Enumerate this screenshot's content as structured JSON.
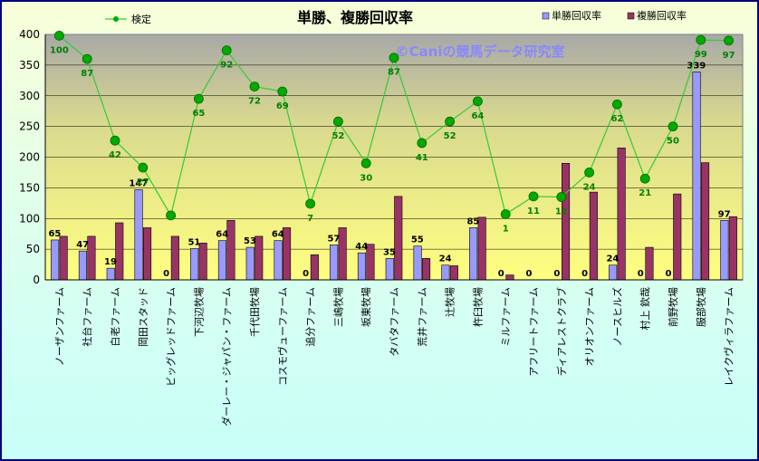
{
  "chart_data": {
    "type": "bar",
    "title": "単勝、複勝回収率",
    "watermark": "©Caniの競馬データ研究室",
    "ylim": [
      0,
      400
    ],
    "yticks": [
      0,
      50,
      100,
      150,
      200,
      250,
      300,
      350,
      400
    ],
    "grid": true,
    "legend_placement": "top",
    "categories": [
      "ノーザンファーム",
      "社台ファーム",
      "白老ファーム",
      "岡田スタッド",
      "ビッグレッドファーム",
      "下河辺牧場",
      "ダーレー・ジャパン・ファーム",
      "千代田牧場",
      "コスモヴューファーム",
      "追分ファーム",
      "三嶋牧場",
      "坂東牧場",
      "タバタファーム",
      "荒井ファーム",
      "辻牧場",
      "杵臼牧場",
      "ミルファーム",
      "アフリートファーム",
      "ディアレストクラブ",
      "オリオンファーム",
      "ノースヒルズ",
      "村上 欽哉",
      "前野牧場",
      "服部牧場",
      "レイクヴィラファーム"
    ],
    "series": [
      {
        "name": "単勝回収率",
        "color": "#9999ff",
        "values": [
          65,
          47,
          19,
          147,
          0,
          51,
          64,
          53,
          64,
          0,
          57,
          44,
          35,
          55,
          24,
          85,
          0,
          0,
          0,
          0,
          24,
          0,
          0,
          339,
          97
        ]
      },
      {
        "name": "複勝回収率",
        "color": "#993366",
        "values": [
          71,
          71,
          93,
          85,
          71,
          60,
          97,
          71,
          85,
          41,
          85,
          58,
          136,
          35,
          23,
          102,
          8,
          0,
          190,
          143,
          215,
          53,
          140,
          191,
          103
        ]
      }
    ],
    "line": {
      "name": "検定",
      "color": "#33cc33",
      "point_color": "#00aa00",
      "labels": [
        100,
        87,
        42,
        27,
        null,
        65,
        92,
        72,
        69,
        7,
        52,
        30,
        87,
        41,
        52,
        64,
        1,
        11,
        11,
        24,
        62,
        21,
        50,
        99,
        97
      ],
      "values": [
        398,
        360,
        227,
        183,
        105,
        295,
        374,
        315,
        307,
        124,
        258,
        190,
        362,
        223,
        258,
        291,
        107,
        136,
        135,
        175,
        286,
        165,
        250,
        391,
        390
      ]
    }
  }
}
